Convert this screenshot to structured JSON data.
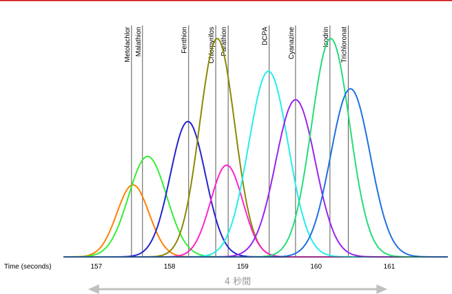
{
  "chart_data": {
    "type": "line",
    "xlabel": "Time (seconds)",
    "xlim": [
      156.55,
      161.8
    ],
    "ylim": [
      0,
      1
    ],
    "x_ticks": [
      "157",
      "158",
      "159",
      "160",
      "161"
    ],
    "x_tick_values": [
      157,
      158,
      159,
      160,
      161
    ],
    "grid": false,
    "legend": "none",
    "top_rule_color": "#cc0000",
    "marker_color": "#555555",
    "retention_markers": [
      {
        "label": "Metolachlor",
        "time": 157.48
      },
      {
        "label": "Malathion",
        "time": 157.63
      },
      {
        "label": "Fenthion",
        "time": 158.26
      },
      {
        "label": "Chlorpyrifos",
        "time": 158.63
      },
      {
        "label": "Parathion",
        "time": 158.8
      },
      {
        "label": "DCPA",
        "time": 159.36
      },
      {
        "label": "Cyanazine",
        "time": 159.72
      },
      {
        "label": "Isodrin",
        "time": 160.19
      },
      {
        "label": "Trichloronat",
        "time": 160.44
      }
    ],
    "series": [
      {
        "color": "#ff8000",
        "peak_time": 157.5,
        "height": 0.33,
        "sigma": 0.22
      },
      {
        "color": "#33ee33",
        "peak_time": 157.7,
        "height": 0.46,
        "sigma": 0.26
      },
      {
        "color": "#2222cc",
        "peak_time": 158.25,
        "height": 0.62,
        "sigma": 0.24
      },
      {
        "color": "#888800",
        "peak_time": 158.65,
        "height": 1.0,
        "sigma": 0.24
      },
      {
        "color": "#ff22cc",
        "peak_time": 158.78,
        "height": 0.42,
        "sigma": 0.22
      },
      {
        "color": "#22eeee",
        "peak_time": 159.35,
        "height": 0.85,
        "sigma": 0.27
      },
      {
        "color": "#9922ee",
        "peak_time": 159.72,
        "height": 0.72,
        "sigma": 0.27
      },
      {
        "color": "#22dd77",
        "peak_time": 160.2,
        "height": 1.0,
        "sigma": 0.26
      },
      {
        "color": "#1e6fe0",
        "peak_time": 160.47,
        "height": 0.77,
        "sigma": 0.27
      }
    ],
    "span_annotation": {
      "label": "4 秒間",
      "from": 157.0,
      "to": 160.9,
      "color": "#c0c0c0"
    }
  }
}
